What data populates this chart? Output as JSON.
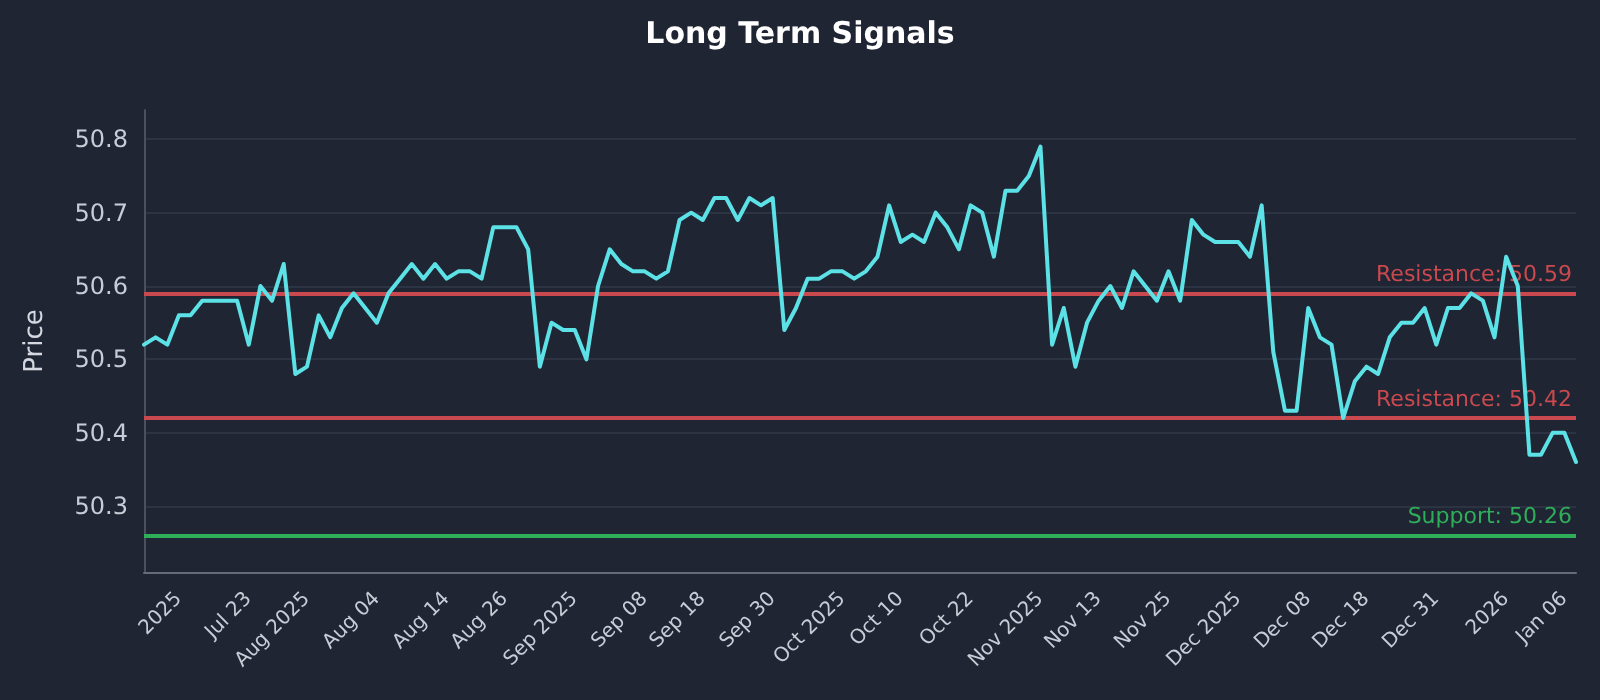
{
  "chart_data": {
    "type": "line",
    "title": "Long Term Signals",
    "ylabel": "Price",
    "categories": [
      null,
      null,
      null,
      "2025",
      null,
      null,
      null,
      null,
      null,
      "Jul 23",
      null,
      null,
      null,
      null,
      "Aug 2025",
      null,
      null,
      null,
      null,
      null,
      "Aug 04",
      null,
      null,
      null,
      null,
      null,
      "Aug 14",
      null,
      null,
      null,
      null,
      "Aug 26",
      null,
      null,
      null,
      null,
      null,
      "Sep 2025",
      null,
      null,
      null,
      null,
      null,
      "Sep 08",
      null,
      null,
      null,
      null,
      "Sep 18",
      null,
      null,
      null,
      null,
      null,
      "Sep 30",
      null,
      null,
      null,
      null,
      null,
      "Oct 2025",
      null,
      null,
      null,
      null,
      "Oct 10",
      null,
      null,
      null,
      null,
      null,
      "Oct 22",
      null,
      null,
      null,
      null,
      null,
      "Nov 2025",
      null,
      null,
      null,
      null,
      "Nov 13",
      null,
      null,
      null,
      null,
      null,
      "Nov 25",
      null,
      null,
      null,
      null,
      null,
      "Dec 2025",
      null,
      null,
      null,
      null,
      null,
      "Dec 08",
      null,
      null,
      null,
      null,
      "Dec 18",
      null,
      null,
      null,
      null,
      null,
      "Dec 31",
      null,
      null,
      null,
      null,
      null,
      "2026",
      null,
      null,
      null,
      null,
      "Jan 06",
      null
    ],
    "series": [
      {
        "color": "#5ce1e6",
        "values": [
          50.52,
          50.53,
          50.52,
          50.56,
          50.56,
          50.58,
          50.58,
          50.58,
          50.58,
          50.52,
          50.6,
          50.58,
          50.63,
          50.48,
          50.49,
          50.56,
          50.53,
          50.57,
          50.59,
          50.57,
          50.55,
          50.59,
          50.61,
          50.63,
          50.61,
          50.63,
          50.61,
          50.62,
          50.62,
          50.61,
          50.68,
          50.68,
          50.68,
          50.65,
          50.49,
          50.55,
          50.54,
          50.54,
          50.5,
          50.6,
          50.65,
          50.63,
          50.62,
          50.62,
          50.61,
          50.62,
          50.69,
          50.7,
          50.69,
          50.72,
          50.72,
          50.69,
          50.72,
          50.71,
          50.72,
          50.54,
          50.57,
          50.61,
          50.61,
          50.62,
          50.62,
          50.61,
          50.62,
          50.64,
          50.71,
          50.66,
          50.67,
          50.66,
          50.7,
          50.68,
          50.65,
          50.71,
          50.7,
          50.64,
          50.73,
          50.73,
          50.75,
          50.79,
          50.52,
          50.57,
          50.49,
          50.55,
          50.58,
          50.6,
          50.57,
          50.62,
          50.6,
          50.58,
          50.62,
          50.58,
          50.69,
          50.67,
          50.66,
          50.66,
          50.66,
          50.64,
          50.71,
          50.51,
          50.43,
          50.43,
          50.57,
          50.53,
          50.52,
          50.42,
          50.47,
          50.49,
          50.48,
          50.53,
          50.55,
          50.55,
          50.57,
          50.52,
          50.57,
          50.57,
          50.59,
          50.58,
          50.53,
          50.64,
          50.6,
          50.37,
          50.37,
          50.4,
          50.4,
          50.36
        ]
      }
    ],
    "ylim": [
      50.21,
      50.84
    ],
    "yticks": [
      50.3,
      50.4,
      50.5,
      50.6,
      50.7,
      50.8
    ],
    "ref_lines": [
      {
        "axis": "y",
        "value": 50.59,
        "label": "Resistance: 50.59",
        "color": "#c9494e"
      },
      {
        "axis": "y",
        "value": 50.42,
        "label": "Resistance: 50.42",
        "color": "#c9494e"
      },
      {
        "axis": "y",
        "value": 50.26,
        "label": "Support: 50.26",
        "color": "#2fae5a"
      }
    ],
    "grid": "y",
    "marker": "none",
    "line_style": "solid"
  }
}
